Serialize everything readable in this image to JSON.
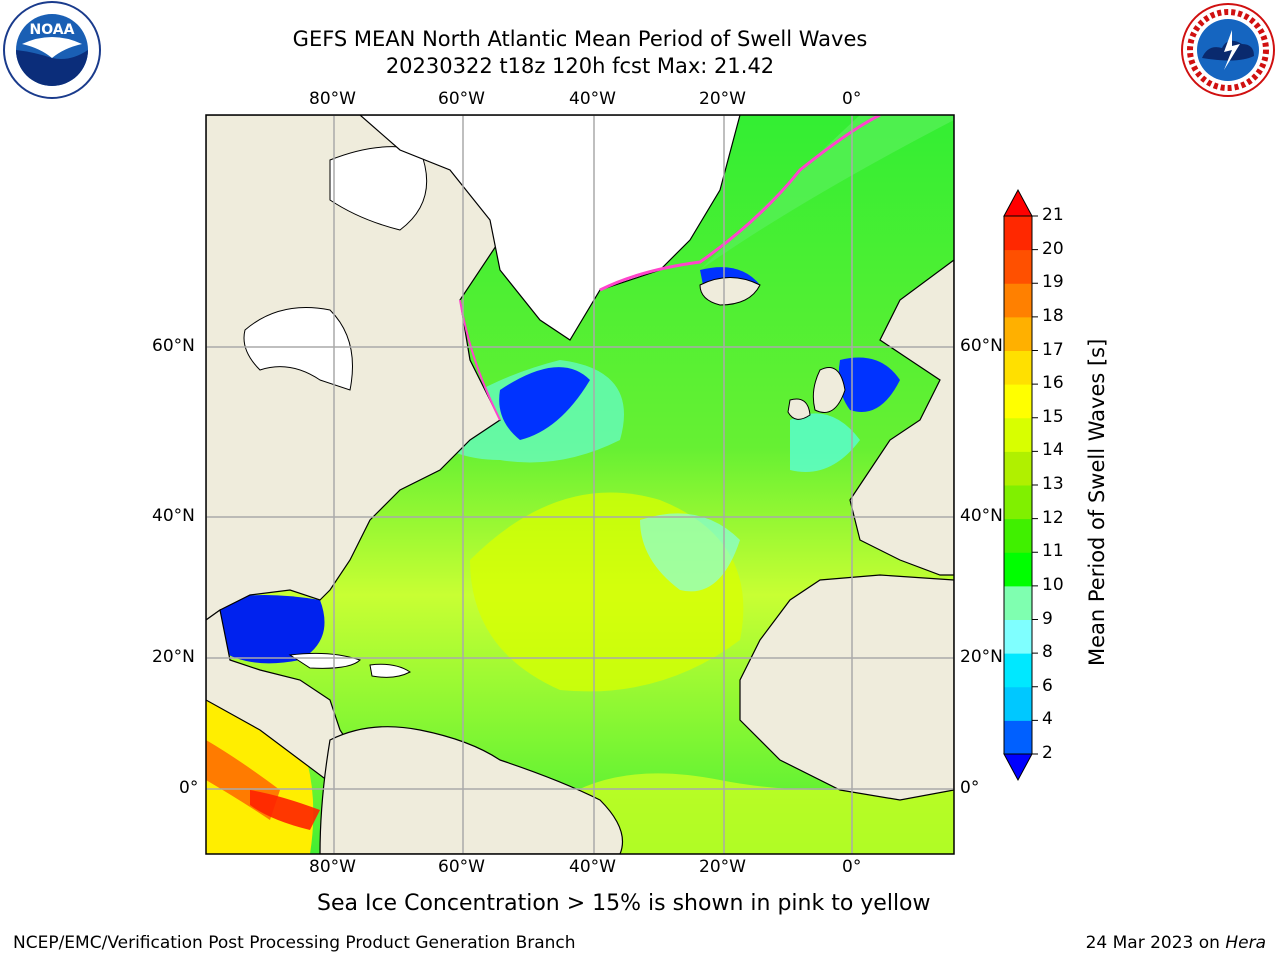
{
  "title_line1": "GEFS MEAN North Atlantic Mean Period of Swell Waves",
  "title_line2": "20230322 t18z 120h fcst   Max: 21.42",
  "logo_left": "NOAA",
  "logo_left_ring": "NATIONAL OCEANIC AND ATMOSPHERIC ADMINISTRATION · U.S. DEPARTMENT OF COMMERCE",
  "logo_right_ring": "NATIONAL WEATHER SERVICE",
  "lon_ticks": [
    "80°W",
    "60°W",
    "40°W",
    "20°W",
    "0°"
  ],
  "lat_ticks": [
    "60°N",
    "40°N",
    "20°N",
    "0°"
  ],
  "colorbar": {
    "label": "Mean Period of Swell Waves [s]",
    "ticks": [
      "2",
      "4",
      "6",
      "8",
      "9",
      "10",
      "11",
      "12",
      "13",
      "14",
      "15",
      "16",
      "17",
      "18",
      "19",
      "20",
      "21"
    ],
    "colors": [
      "#0000ff",
      "#0060ff",
      "#00c8ff",
      "#00e8ff",
      "#7fffff",
      "#7fffb0",
      "#00ff00",
      "#40f000",
      "#80f000",
      "#b0f000",
      "#d8ff00",
      "#ffff00",
      "#ffe000",
      "#ffb000",
      "#ff8000",
      "#ff5000",
      "#ff2800",
      "#ff0000"
    ]
  },
  "note": "Sea Ice Concentration > 15% is shown in pink to yellow",
  "footer_left": "NCEP/EMC/Verification Post Processing Product Generation Branch",
  "footer_right_prefix": "24 Mar 2023 on ",
  "footer_right_host": "Hera"
}
